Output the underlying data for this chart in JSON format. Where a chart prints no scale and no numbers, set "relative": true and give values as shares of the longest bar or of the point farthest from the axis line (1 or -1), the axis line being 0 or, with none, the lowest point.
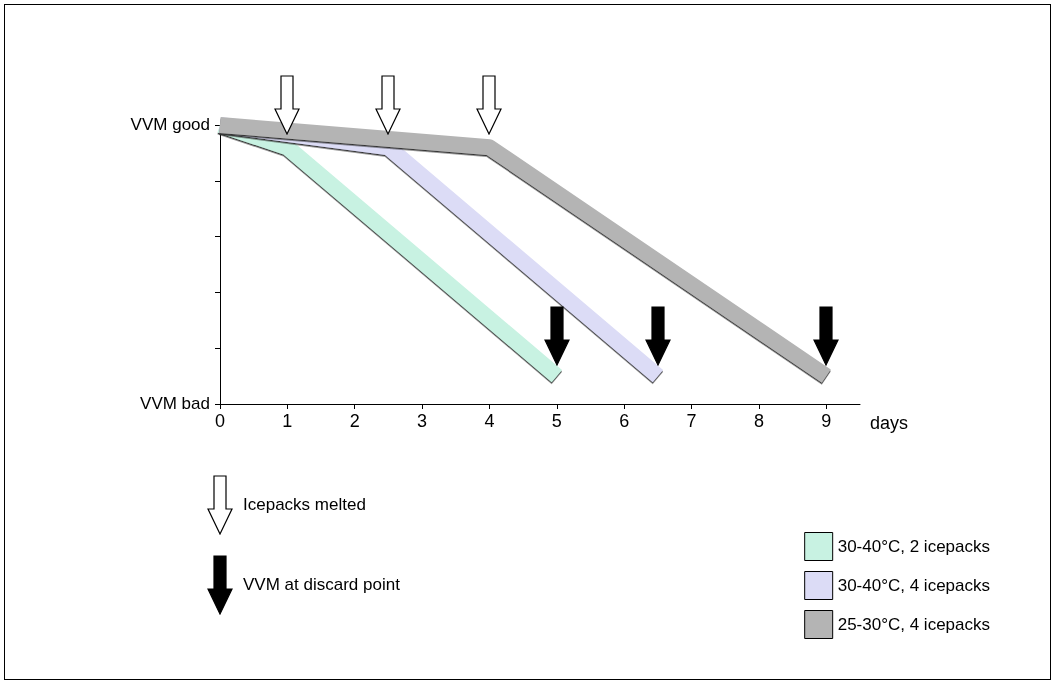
{
  "chart_data": {
    "type": "line",
    "xlabel": "days",
    "xlim": [
      0,
      9.5
    ],
    "xticks": [
      0,
      1,
      2,
      3,
      4,
      5,
      6,
      7,
      8,
      9
    ],
    "relative": true,
    "series": [
      {
        "name": "30-40°C, 2 icepacks",
        "color": "#c8f2e2",
        "x": [
          0,
          1,
          5
        ],
        "values": [
          1,
          0.92,
          0.1
        ]
      },
      {
        "name": "30-40°C, 4 icepacks",
        "color": "#dcdcf6",
        "x": [
          0,
          2.5,
          6.5
        ],
        "values": [
          1,
          0.92,
          0.1
        ]
      },
      {
        "name": "25-30°C, 4 icepacks",
        "color": "#b4b4b4",
        "x": [
          0,
          4,
          9
        ],
        "values": [
          1,
          0.92,
          0.1
        ]
      }
    ],
    "annotations": [
      "VVM good",
      "VVM bad",
      "Icepacks melted",
      "VVM at discard point"
    ],
    "legend": "bottom right",
    "grid": false,
    "marker": "none",
    "line_style": "solid"
  }
}
